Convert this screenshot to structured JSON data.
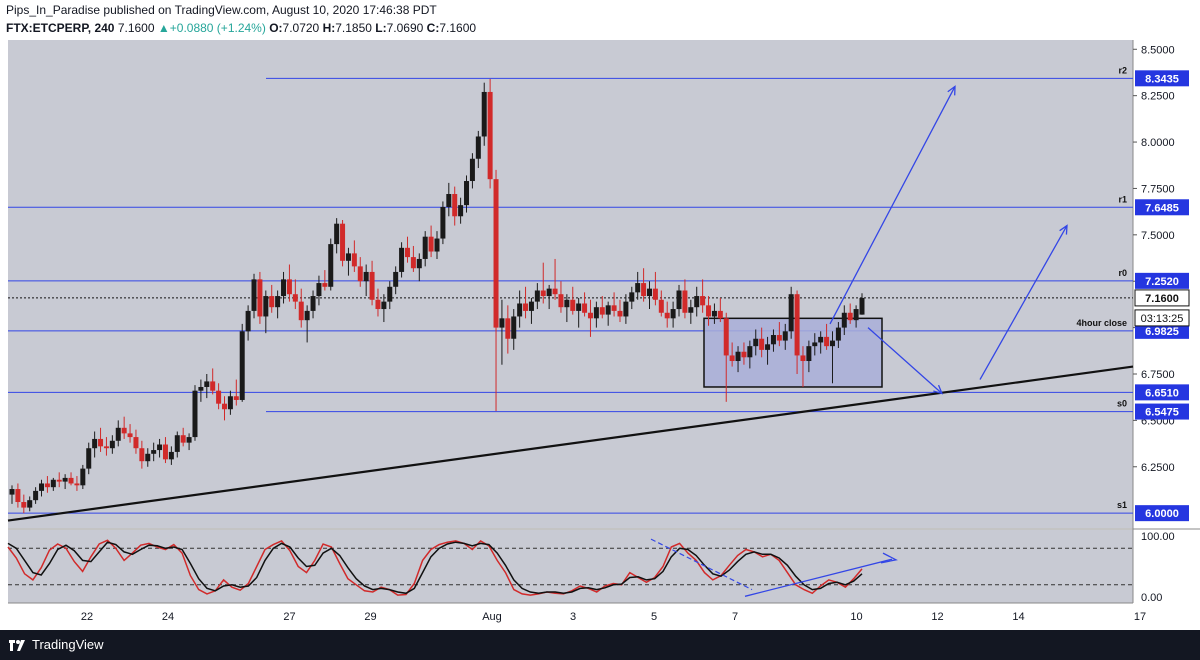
{
  "header": {
    "line1": "Pips_In_Paradise published on TradingView.com, August 10, 2020 17:46:38 PDT",
    "symbol": "FTX:ETCPERP, 240",
    "last": "7.1600",
    "change_arrow": "▲",
    "change": "+0.0880 (+1.24%)",
    "o_label": "O:",
    "o": "7.0720",
    "h_label": "H:",
    "h": "7.1850",
    "l_label": "L:",
    "l": "7.0690",
    "c_label": "C:",
    "c": "7.1600"
  },
  "footer": {
    "brand": "TradingView",
    "logo_icon": "tradingview-logo-icon"
  },
  "colors": {
    "plot_bg": "#c8cad3",
    "up": "#1a1a1a",
    "down": "#d12a2a",
    "level": "#3346e6",
    "trend": "#111111",
    "box_fill": "#a9afd8",
    "stoch_k": "#d12a2a",
    "stoch_d": "#111111",
    "tag_bg": "#2536e0"
  },
  "chart_data": [
    {
      "type": "candlestick",
      "ylim": [
        5.92,
        8.55
      ],
      "y_ticks": [
        "8.5000",
        "8.2500",
        "8.0000",
        "7.7500",
        "7.5000",
        "7.2500",
        "7.0000",
        "6.7500",
        "6.5000",
        "6.2500"
      ],
      "x_ticks": [
        "22",
        "24",
        "27",
        "29",
        "Aug",
        "3",
        "5",
        "7",
        "10",
        "12",
        "14",
        "17"
      ],
      "last_price": 7.16,
      "countdown": "03:13:25",
      "levels": [
        {
          "label": "r2",
          "value": "8.3435"
        },
        {
          "label": "r1",
          "value": "7.6485"
        },
        {
          "label": "r0",
          "value": "7.2520"
        },
        {
          "label": "4hour close",
          "value": "6.9825"
        },
        {
          "label": "",
          "value": "6.6510"
        },
        {
          "label": "s0",
          "value": "6.5475"
        },
        {
          "label": "s1",
          "value": "6.0000"
        }
      ],
      "trendline": {
        "start": [
          "Jul 20",
          5.96
        ],
        "end": [
          "Aug 17",
          6.79
        ]
      },
      "consolidation_box": {
        "high": 7.05,
        "low": 6.68
      },
      "candles": [
        [
          6.1,
          6.15,
          6.05,
          6.13
        ],
        [
          6.13,
          6.16,
          6.03,
          6.06
        ],
        [
          6.06,
          6.1,
          6.0,
          6.03
        ],
        [
          6.03,
          6.09,
          6.01,
          6.07
        ],
        [
          6.07,
          6.14,
          6.05,
          6.12
        ],
        [
          6.12,
          6.18,
          6.09,
          6.16
        ],
        [
          6.16,
          6.2,
          6.11,
          6.14
        ],
        [
          6.14,
          6.19,
          6.12,
          6.18
        ],
        [
          6.18,
          6.22,
          6.14,
          6.17
        ],
        [
          6.17,
          6.21,
          6.13,
          6.19
        ],
        [
          6.19,
          6.22,
          6.15,
          6.16
        ],
        [
          6.16,
          6.2,
          6.12,
          6.15
        ],
        [
          6.15,
          6.26,
          6.13,
          6.24
        ],
        [
          6.24,
          6.38,
          6.21,
          6.35
        ],
        [
          6.35,
          6.44,
          6.3,
          6.4
        ],
        [
          6.4,
          6.46,
          6.33,
          6.36
        ],
        [
          6.36,
          6.41,
          6.31,
          6.35
        ],
        [
          6.35,
          6.42,
          6.32,
          6.39
        ],
        [
          6.39,
          6.5,
          6.36,
          6.46
        ],
        [
          6.46,
          6.52,
          6.4,
          6.43
        ],
        [
          6.43,
          6.48,
          6.38,
          6.41
        ],
        [
          6.41,
          6.45,
          6.32,
          6.35
        ],
        [
          6.35,
          6.39,
          6.24,
          6.28
        ],
        [
          6.28,
          6.35,
          6.25,
          6.32
        ],
        [
          6.32,
          6.38,
          6.28,
          6.34
        ],
        [
          6.34,
          6.4,
          6.3,
          6.37
        ],
        [
          6.37,
          6.41,
          6.27,
          6.29
        ],
        [
          6.29,
          6.36,
          6.26,
          6.33
        ],
        [
          6.33,
          6.44,
          6.3,
          6.42
        ],
        [
          6.42,
          6.46,
          6.36,
          6.38
        ],
        [
          6.38,
          6.43,
          6.34,
          6.41
        ],
        [
          6.41,
          6.69,
          6.39,
          6.66
        ],
        [
          6.66,
          6.72,
          6.6,
          6.68
        ],
        [
          6.68,
          6.75,
          6.62,
          6.71
        ],
        [
          6.71,
          6.78,
          6.64,
          6.66
        ],
        [
          6.66,
          6.7,
          6.56,
          6.59
        ],
        [
          6.59,
          6.63,
          6.5,
          6.56
        ],
        [
          6.56,
          6.66,
          6.53,
          6.63
        ],
        [
          6.63,
          6.72,
          6.58,
          6.61
        ],
        [
          6.61,
          7.02,
          6.6,
          6.98
        ],
        [
          6.98,
          7.12,
          6.93,
          7.09
        ],
        [
          7.09,
          7.29,
          7.05,
          7.26
        ],
        [
          7.26,
          7.3,
          7.02,
          7.06
        ],
        [
          7.06,
          7.2,
          6.97,
          7.17
        ],
        [
          7.17,
          7.23,
          7.08,
          7.11
        ],
        [
          7.11,
          7.2,
          7.05,
          7.17
        ],
        [
          7.17,
          7.3,
          7.13,
          7.26
        ],
        [
          7.26,
          7.34,
          7.14,
          7.18
        ],
        [
          7.18,
          7.26,
          7.1,
          7.14
        ],
        [
          7.14,
          7.21,
          7.0,
          7.04
        ],
        [
          7.04,
          7.12,
          6.92,
          7.09
        ],
        [
          7.09,
          7.2,
          7.05,
          7.17
        ],
        [
          7.17,
          7.28,
          7.12,
          7.24
        ],
        [
          7.24,
          7.31,
          7.2,
          7.22
        ],
        [
          7.22,
          7.48,
          7.2,
          7.45
        ],
        [
          7.45,
          7.59,
          7.4,
          7.56
        ],
        [
          7.56,
          7.58,
          7.33,
          7.36
        ],
        [
          7.36,
          7.43,
          7.28,
          7.4
        ],
        [
          7.4,
          7.47,
          7.3,
          7.33
        ],
        [
          7.33,
          7.38,
          7.22,
          7.25
        ],
        [
          7.25,
          7.34,
          7.17,
          7.3
        ],
        [
          7.3,
          7.36,
          7.12,
          7.15
        ],
        [
          7.15,
          7.21,
          7.06,
          7.1
        ],
        [
          7.1,
          7.18,
          7.03,
          7.14
        ],
        [
          7.14,
          7.25,
          7.1,
          7.22
        ],
        [
          7.22,
          7.33,
          7.18,
          7.3
        ],
        [
          7.3,
          7.46,
          7.27,
          7.43
        ],
        [
          7.43,
          7.49,
          7.35,
          7.38
        ],
        [
          7.38,
          7.44,
          7.3,
          7.32
        ],
        [
          7.32,
          7.4,
          7.25,
          7.37
        ],
        [
          7.37,
          7.52,
          7.33,
          7.49
        ],
        [
          7.49,
          7.55,
          7.38,
          7.41
        ],
        [
          7.41,
          7.52,
          7.37,
          7.48
        ],
        [
          7.48,
          7.68,
          7.45,
          7.65
        ],
        [
          7.65,
          7.78,
          7.6,
          7.72
        ],
        [
          7.72,
          7.76,
          7.55,
          7.6
        ],
        [
          7.6,
          7.7,
          7.56,
          7.66
        ],
        [
          7.66,
          7.82,
          7.62,
          7.79
        ],
        [
          7.79,
          7.94,
          7.75,
          7.91
        ],
        [
          7.91,
          8.06,
          7.86,
          8.03
        ],
        [
          8.03,
          8.32,
          7.98,
          8.27
        ],
        [
          8.27,
          8.34,
          7.75,
          7.8
        ],
        [
          7.8,
          7.85,
          6.55,
          7.0
        ],
        [
          7.0,
          7.15,
          6.8,
          7.05
        ],
        [
          7.05,
          7.12,
          6.86,
          6.94
        ],
        [
          6.94,
          7.1,
          6.88,
          7.06
        ],
        [
          7.06,
          7.2,
          7.0,
          7.13
        ],
        [
          7.13,
          7.22,
          7.05,
          7.09
        ],
        [
          7.09,
          7.16,
          7.02,
          7.14
        ],
        [
          7.14,
          7.24,
          7.1,
          7.2
        ],
        [
          7.2,
          7.35,
          7.13,
          7.17
        ],
        [
          7.17,
          7.23,
          7.1,
          7.21
        ],
        [
          7.21,
          7.37,
          7.15,
          7.18
        ],
        [
          7.18,
          7.25,
          7.08,
          7.11
        ],
        [
          7.11,
          7.18,
          7.03,
          7.15
        ],
        [
          7.15,
          7.22,
          7.07,
          7.09
        ],
        [
          7.09,
          7.16,
          7.0,
          7.13
        ],
        [
          7.13,
          7.19,
          7.06,
          7.08
        ],
        [
          7.08,
          7.15,
          6.95,
          7.05
        ],
        [
          7.05,
          7.14,
          7.0,
          7.11
        ],
        [
          7.11,
          7.17,
          7.05,
          7.07
        ],
        [
          7.07,
          7.14,
          7.01,
          7.12
        ],
        [
          7.12,
          7.19,
          7.06,
          7.09
        ],
        [
          7.09,
          7.15,
          7.03,
          7.06
        ],
        [
          7.06,
          7.18,
          7.02,
          7.14
        ],
        [
          7.14,
          7.22,
          7.1,
          7.19
        ],
        [
          7.19,
          7.3,
          7.15,
          7.24
        ],
        [
          7.24,
          7.32,
          7.14,
          7.17
        ],
        [
          7.17,
          7.25,
          7.1,
          7.21
        ],
        [
          7.21,
          7.3,
          7.12,
          7.15
        ],
        [
          7.15,
          7.2,
          7.06,
          7.08
        ],
        [
          7.08,
          7.14,
          7.0,
          7.05
        ],
        [
          7.05,
          7.14,
          7.0,
          7.1
        ],
        [
          7.1,
          7.23,
          7.06,
          7.2
        ],
        [
          7.2,
          7.26,
          7.05,
          7.08
        ],
        [
          7.08,
          7.15,
          7.02,
          7.11
        ],
        [
          7.11,
          7.22,
          7.06,
          7.17
        ],
        [
          7.17,
          7.26,
          7.08,
          7.12
        ],
        [
          7.12,
          7.17,
          7.01,
          7.06
        ],
        [
          7.06,
          7.13,
          7.02,
          7.09
        ],
        [
          7.09,
          7.16,
          7.03,
          7.05
        ],
        [
          7.05,
          7.08,
          6.6,
          6.85
        ],
        [
          6.85,
          6.92,
          6.79,
          6.82
        ],
        [
          6.82,
          6.9,
          6.76,
          6.87
        ],
        [
          6.87,
          6.92,
          6.8,
          6.84
        ],
        [
          6.84,
          6.93,
          6.78,
          6.9
        ],
        [
          6.9,
          6.99,
          6.85,
          6.94
        ],
        [
          6.94,
          7.0,
          6.84,
          6.88
        ],
        [
          6.88,
          6.95,
          6.8,
          6.91
        ],
        [
          6.91,
          6.99,
          6.87,
          6.96
        ],
        [
          6.96,
          7.03,
          6.9,
          6.93
        ],
        [
          6.93,
          7.02,
          6.88,
          6.98
        ],
        [
          6.98,
          7.22,
          6.94,
          7.18
        ],
        [
          7.18,
          7.2,
          6.75,
          6.85
        ],
        [
          6.85,
          6.9,
          6.68,
          6.82
        ],
        [
          6.82,
          6.93,
          6.76,
          6.9
        ],
        [
          6.9,
          6.97,
          6.85,
          6.92
        ],
        [
          6.92,
          6.98,
          6.86,
          6.95
        ],
        [
          6.95,
          7.02,
          6.88,
          6.9
        ],
        [
          6.9,
          6.98,
          6.7,
          6.93
        ],
        [
          6.93,
          7.03,
          6.89,
          7.0
        ],
        [
          7.0,
          7.12,
          6.96,
          7.08
        ],
        [
          7.08,
          7.13,
          7.02,
          7.04
        ],
        [
          7.04,
          7.12,
          7.0,
          7.1
        ],
        [
          7.07,
          7.185,
          7.069,
          7.16
        ]
      ]
    },
    {
      "type": "line",
      "name": "stochastic-oscillator",
      "ylim": [
        -10,
        110
      ],
      "y_ticks": [
        "100.00",
        "0.00"
      ],
      "bands": [
        80,
        20
      ],
      "series": [
        {
          "values": [
            82,
            64,
            38,
            28,
            48,
            77,
            87,
            80,
            58,
            42,
            66,
            87,
            93,
            80,
            60,
            72,
            85,
            88,
            82,
            78,
            86,
            72,
            35,
            12,
            5,
            10,
            28,
            16,
            11,
            22,
            50,
            78,
            86,
            92,
            76,
            50,
            40,
            60,
            87,
            82,
            55,
            30,
            20,
            10,
            8,
            16,
            12,
            3,
            4,
            22,
            60,
            78,
            86,
            90,
            92,
            88,
            78,
            92,
            84,
            60,
            40,
            12,
            5,
            3,
            5,
            8,
            6,
            5,
            10,
            18,
            14,
            8,
            18,
            22,
            20,
            40,
            32,
            24,
            32,
            50,
            82,
            88,
            72,
            60,
            40,
            28,
            35,
            52,
            68,
            78,
            74,
            66,
            70,
            60,
            40,
            20,
            12,
            6,
            18,
            28,
            24,
            16,
            30,
            46
          ]
        },
        {
          "values": [
            88,
            80,
            60,
            40,
            36,
            55,
            78,
            85,
            76,
            60,
            58,
            74,
            90,
            86,
            74,
            70,
            78,
            85,
            84,
            80,
            82,
            78,
            55,
            30,
            14,
            10,
            18,
            20,
            16,
            18,
            32,
            60,
            80,
            88,
            82,
            64,
            50,
            52,
            72,
            80,
            68,
            48,
            30,
            18,
            12,
            14,
            12,
            8,
            6,
            14,
            40,
            66,
            80,
            87,
            90,
            88,
            84,
            88,
            86,
            72,
            52,
            28,
            14,
            8,
            6,
            8,
            8,
            6,
            8,
            14,
            15,
            12,
            15,
            20,
            21,
            32,
            33,
            28,
            30,
            42,
            66,
            80,
            78,
            68,
            52,
            38,
            34,
            44,
            58,
            70,
            74,
            70,
            70,
            64,
            52,
            34,
            20,
            12,
            14,
            22,
            24,
            20,
            26,
            38
          ]
        }
      ]
    }
  ],
  "stoch_overlays": {
    "band_labels": [
      "100.00",
      "0.00"
    ]
  }
}
